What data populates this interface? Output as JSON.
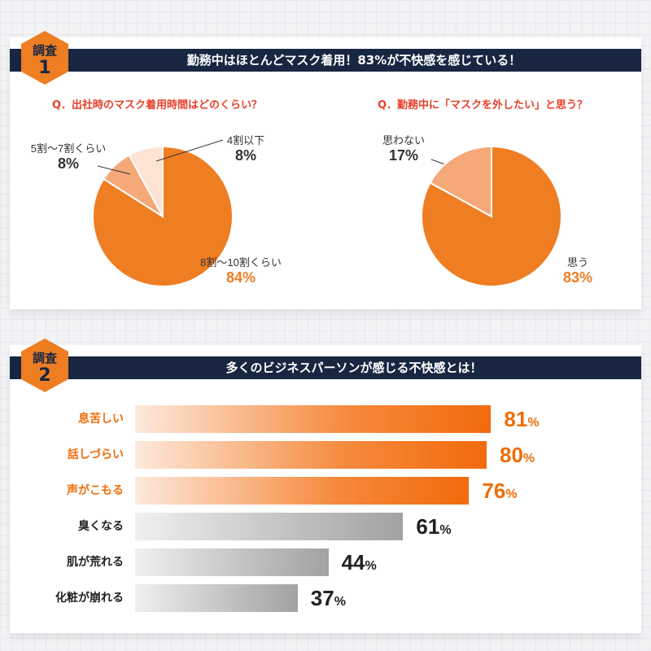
{
  "survey1": {
    "badge_word": "調査",
    "badge_num": "1",
    "title": "勤務中はほとんどマスク着用！83%が不快感を感じている！",
    "q1": "Q．出社時のマスク着用時間はどのくらい？",
    "q2": "Q．勤務中に「マスクを外したい」と思う？"
  },
  "survey2": {
    "badge_word": "調査",
    "badge_num": "2",
    "title": "多くのビジネスパーソンが感じる不快感とは！"
  },
  "colors": {
    "navy": "#182642",
    "orange": "#ef7d22",
    "light_orange": "#f5a878",
    "pale_orange": "#fde3d3",
    "question_red": "#e8402a",
    "gray": "#aaaaaa"
  },
  "chart_data": [
    {
      "type": "pie",
      "title": "Q．出社時のマスク着用時間はどのくらい？",
      "slices": [
        {
          "name": "8割～10割くらい",
          "value": 84,
          "label": "84%",
          "color": "#ef7d22"
        },
        {
          "name": "5割～7割くらい",
          "value": 8,
          "label": "8%",
          "color": "#f5a878"
        },
        {
          "name": "4割以下",
          "value": 8,
          "label": "8%",
          "color": "#fde3d3"
        }
      ]
    },
    {
      "type": "pie",
      "title": "Q．勤務中に「マスクを外したい」と思う？",
      "slices": [
        {
          "name": "思う",
          "value": 83,
          "label": "83%",
          "color": "#ef7d22"
        },
        {
          "name": "思わない",
          "value": 17,
          "label": "17%",
          "color": "#f5a878"
        }
      ]
    },
    {
      "type": "bar",
      "title": "多くのビジネスパーソンが感じる不快感とは！",
      "categories": [
        "息苦しい",
        "話しづらい",
        "声がこもる",
        "臭くなる",
        "肌が荒れる",
        "化粧が崩れる"
      ],
      "values": [
        81,
        80,
        76,
        61,
        44,
        37
      ],
      "unit": "%",
      "highlighted": [
        true,
        true,
        true,
        false,
        false,
        false
      ]
    }
  ]
}
